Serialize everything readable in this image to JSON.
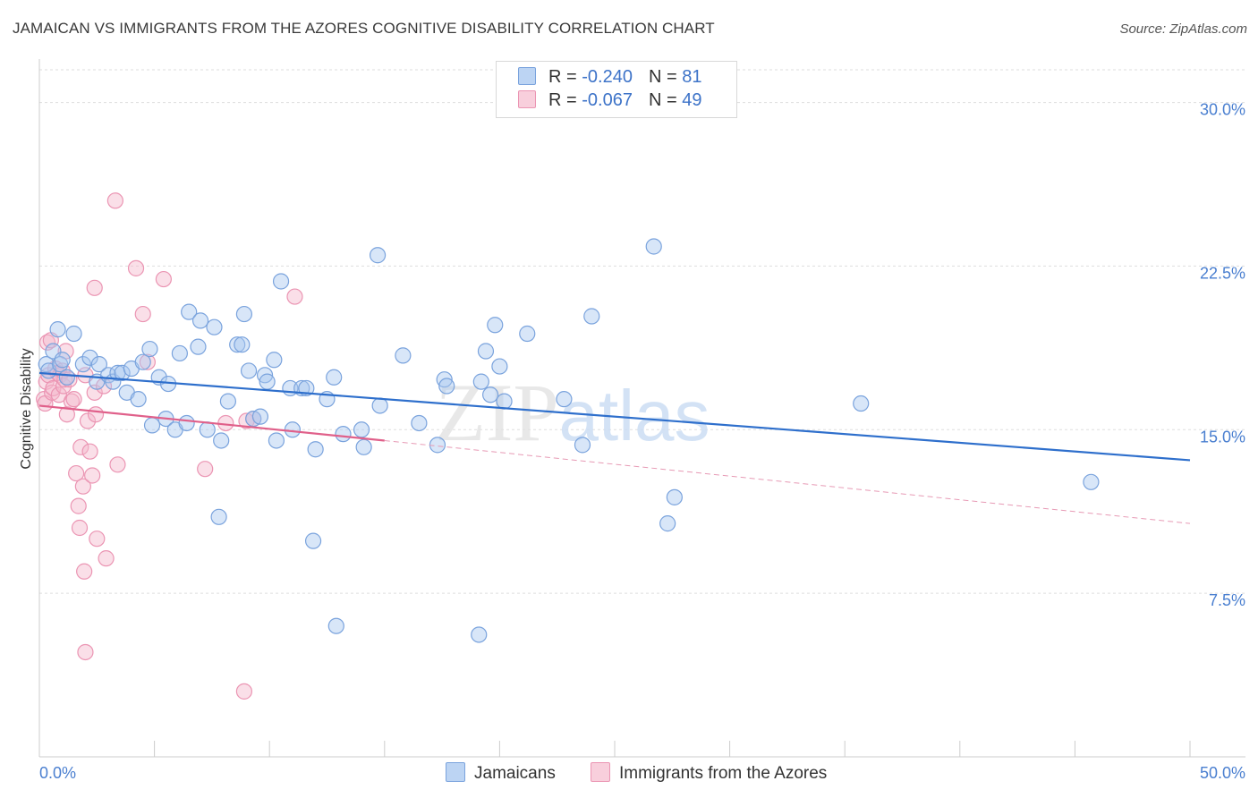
{
  "title": "JAMAICAN VS IMMIGRANTS FROM THE AZORES COGNITIVE DISABILITY CORRELATION CHART",
  "source": "Source: ZipAtlas.com",
  "watermark": "ZIPatlas",
  "colors": {
    "blue": "#5b8fd8",
    "blue_fill": "#a9c8f0",
    "blue_line": "#2e6fcc",
    "pink": "#e97fa3",
    "pink_fill": "#f4b9cd",
    "pink_line": "#e0608a",
    "tick_text": "#4a7fd0",
    "grid": "#dddddd"
  },
  "legend": {
    "row1": {
      "r_label": "R = ",
      "r_value": "-0.240",
      "n_label": "N = ",
      "n_value": "81"
    },
    "row2": {
      "r_label": "R = ",
      "r_value": "-0.067",
      "n_label": "N = ",
      "n_value": "49"
    }
  },
  "bottom_legend": {
    "series1": "Jamaicans",
    "series2": "Immigrants from the Azores"
  },
  "chart_data": {
    "type": "scatter",
    "title": "JAMAICAN VS IMMIGRANTS FROM THE AZORES COGNITIVE DISABILITY CORRELATION CHART",
    "xlabel": "",
    "ylabel": "Cognitive Disability",
    "xlim": [
      0,
      50
    ],
    "ylim": [
      0,
      31.5
    ],
    "x_tick_labels": [
      "0.0%",
      "50.0%"
    ],
    "y_ticks": [
      7.5,
      15.0,
      22.5,
      30.0
    ],
    "y_tick_labels": [
      "7.5%",
      "15.0%",
      "22.5%",
      "30.0%"
    ],
    "grid": true,
    "series": [
      {
        "name": "Jamaicans",
        "color": "#5b8fd8",
        "trend": {
          "x": [
            0,
            50
          ],
          "y": [
            17.6,
            13.6
          ]
        },
        "points": [
          [
            0.3,
            18.0
          ],
          [
            0.4,
            17.7
          ],
          [
            0.6,
            18.6
          ],
          [
            0.8,
            19.6
          ],
          [
            0.9,
            18.0
          ],
          [
            1.0,
            18.2
          ],
          [
            1.2,
            17.4
          ],
          [
            1.5,
            19.4
          ],
          [
            1.9,
            18.0
          ],
          [
            2.2,
            18.3
          ],
          [
            2.5,
            17.2
          ],
          [
            2.6,
            18.0
          ],
          [
            3.0,
            17.5
          ],
          [
            3.2,
            17.2
          ],
          [
            3.4,
            17.6
          ],
          [
            3.6,
            17.6
          ],
          [
            3.8,
            16.7
          ],
          [
            4.0,
            17.8
          ],
          [
            4.3,
            16.4
          ],
          [
            4.5,
            18.1
          ],
          [
            4.8,
            18.7
          ],
          [
            4.9,
            15.2
          ],
          [
            5.2,
            17.4
          ],
          [
            5.5,
            15.5
          ],
          [
            5.6,
            17.1
          ],
          [
            5.9,
            15.0
          ],
          [
            6.1,
            18.5
          ],
          [
            6.4,
            15.3
          ],
          [
            6.5,
            20.4
          ],
          [
            6.9,
            18.8
          ],
          [
            7.0,
            20.0
          ],
          [
            7.3,
            15.0
          ],
          [
            7.6,
            19.7
          ],
          [
            7.8,
            11.0
          ],
          [
            7.9,
            14.5
          ],
          [
            8.2,
            16.3
          ],
          [
            8.6,
            18.9
          ],
          [
            8.8,
            18.9
          ],
          [
            8.9,
            20.3
          ],
          [
            9.1,
            17.7
          ],
          [
            9.3,
            15.5
          ],
          [
            9.6,
            15.6
          ],
          [
            9.8,
            17.5
          ],
          [
            9.9,
            17.2
          ],
          [
            10.2,
            18.2
          ],
          [
            10.3,
            14.5
          ],
          [
            10.5,
            21.8
          ],
          [
            10.9,
            16.9
          ],
          [
            11.0,
            15.0
          ],
          [
            11.4,
            16.9
          ],
          [
            11.6,
            16.9
          ],
          [
            11.9,
            9.9
          ],
          [
            12.0,
            14.1
          ],
          [
            12.5,
            16.4
          ],
          [
            12.8,
            17.4
          ],
          [
            12.9,
            6.0
          ],
          [
            13.2,
            14.8
          ],
          [
            14.0,
            15.0
          ],
          [
            14.1,
            14.2
          ],
          [
            14.7,
            23.0
          ],
          [
            14.8,
            16.1
          ],
          [
            15.8,
            18.4
          ],
          [
            16.5,
            15.3
          ],
          [
            17.3,
            14.3
          ],
          [
            17.6,
            17.3
          ],
          [
            17.7,
            17.0
          ],
          [
            19.1,
            5.6
          ],
          [
            19.2,
            17.2
          ],
          [
            19.4,
            18.6
          ],
          [
            19.6,
            16.6
          ],
          [
            19.8,
            19.8
          ],
          [
            20.0,
            17.9
          ],
          [
            20.2,
            16.3
          ],
          [
            21.2,
            19.4
          ],
          [
            22.8,
            16.4
          ],
          [
            23.6,
            14.3
          ],
          [
            24.0,
            20.2
          ],
          [
            26.7,
            23.4
          ],
          [
            27.3,
            10.7
          ],
          [
            27.6,
            11.9
          ],
          [
            35.7,
            16.2
          ],
          [
            45.7,
            12.6
          ]
        ]
      },
      {
        "name": "Immigrants from the Azores",
        "color": "#e97fa3",
        "trend": {
          "x": [
            0,
            15
          ],
          "y": [
            16.1,
            14.5
          ]
        },
        "trend_dashed": {
          "x": [
            15,
            50
          ],
          "y": [
            14.5,
            10.7
          ]
        },
        "points": [
          [
            0.2,
            16.4
          ],
          [
            0.25,
            16.2
          ],
          [
            0.3,
            17.2
          ],
          [
            0.35,
            19.0
          ],
          [
            0.4,
            17.5
          ],
          [
            0.5,
            19.1
          ],
          [
            0.55,
            16.7
          ],
          [
            0.6,
            16.9
          ],
          [
            0.7,
            17.8
          ],
          [
            0.8,
            17.6
          ],
          [
            0.85,
            16.6
          ],
          [
            0.9,
            17.5
          ],
          [
            1.0,
            17.7
          ],
          [
            1.05,
            17.0
          ],
          [
            1.1,
            17.3
          ],
          [
            1.15,
            18.6
          ],
          [
            1.2,
            15.7
          ],
          [
            1.3,
            17.3
          ],
          [
            1.4,
            16.3
          ],
          [
            1.5,
            16.4
          ],
          [
            1.6,
            13.0
          ],
          [
            1.7,
            11.5
          ],
          [
            1.75,
            10.5
          ],
          [
            1.8,
            14.2
          ],
          [
            1.9,
            12.4
          ],
          [
            1.95,
            8.5
          ],
          [
            2.0,
            4.8
          ],
          [
            2.1,
            15.4
          ],
          [
            2.2,
            14.0
          ],
          [
            2.3,
            12.9
          ],
          [
            2.4,
            16.7
          ],
          [
            2.45,
            15.7
          ],
          [
            2.5,
            10.0
          ],
          [
            2.8,
            17.0
          ],
          [
            2.9,
            9.1
          ],
          [
            3.3,
            25.5
          ],
          [
            3.4,
            13.4
          ],
          [
            4.2,
            22.4
          ],
          [
            4.5,
            20.3
          ],
          [
            4.7,
            18.1
          ],
          [
            5.4,
            21.9
          ],
          [
            2.4,
            21.5
          ],
          [
            7.2,
            13.2
          ],
          [
            8.1,
            15.3
          ],
          [
            9.0,
            15.4
          ],
          [
            9.3,
            15.5
          ],
          [
            8.9,
            3.0
          ],
          [
            11.1,
            21.1
          ],
          [
            2.0,
            17.5
          ]
        ]
      }
    ]
  }
}
